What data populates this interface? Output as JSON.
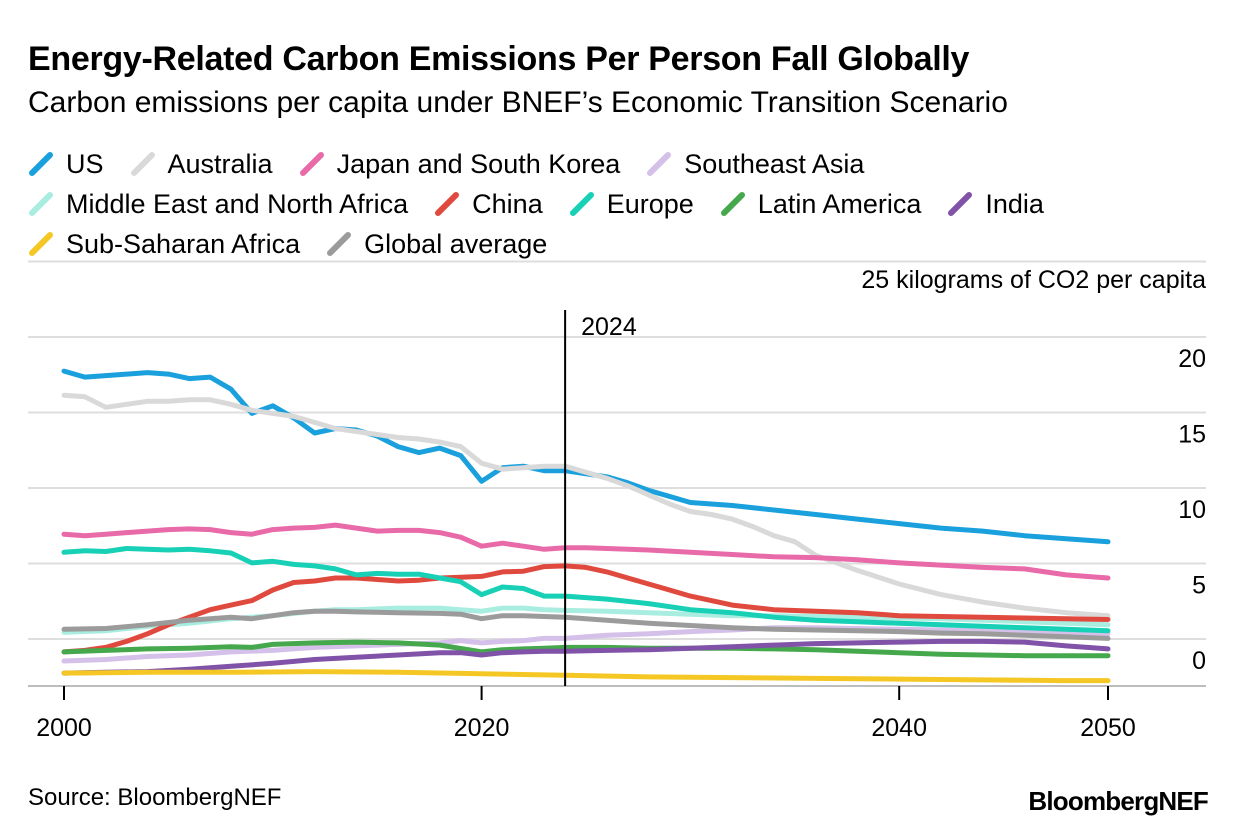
{
  "title": "Energy-Related Carbon Emissions Per Person Fall Globally",
  "subtitle": "Carbon emissions per capita under BNEF’s Economic Transition Scenario",
  "source": "Source: BloombergNEF",
  "brand": "BloombergNEF",
  "chart_data": {
    "type": "line",
    "unit_label": "25 kilograms of CO2 per capita",
    "ylim": [
      -1,
      25
    ],
    "xlim": [
      1999,
      2052
    ],
    "y_ticks": [
      0,
      5,
      10,
      15,
      20
    ],
    "x_ticks": [
      2000,
      2020,
      2040,
      2050
    ],
    "grid": true,
    "legend_position": "top",
    "annotation": {
      "x": 2024,
      "label": "2024"
    },
    "series": [
      {
        "name": "US",
        "color": "#1aa0dc",
        "x": [
          2000,
          2001,
          2002,
          2003,
          2004,
          2005,
          2006,
          2007,
          2008,
          2009,
          2010,
          2011,
          2012,
          2013,
          2014,
          2015,
          2016,
          2017,
          2018,
          2019,
          2020,
          2021,
          2022,
          2023,
          2024,
          2025,
          2026,
          2027,
          2028,
          2029,
          2030,
          2032,
          2034,
          2036,
          2038,
          2040,
          2042,
          2044,
          2046,
          2048,
          2050
        ],
        "y": [
          19.2,
          18.8,
          18.9,
          19.0,
          19.1,
          19.0,
          18.7,
          18.8,
          18.0,
          16.4,
          16.9,
          16.1,
          15.1,
          15.4,
          15.3,
          14.9,
          14.2,
          13.8,
          14.1,
          13.6,
          11.9,
          12.8,
          12.9,
          12.6,
          12.6,
          12.4,
          12.2,
          11.8,
          11.3,
          10.9,
          10.5,
          10.3,
          10.0,
          9.7,
          9.4,
          9.1,
          8.8,
          8.6,
          8.3,
          8.1,
          7.9
        ]
      },
      {
        "name": "Australia",
        "color": "#d9d9d9",
        "x": [
          2000,
          2001,
          2002,
          2003,
          2004,
          2005,
          2006,
          2007,
          2008,
          2009,
          2010,
          2011,
          2012,
          2013,
          2014,
          2015,
          2016,
          2017,
          2018,
          2019,
          2020,
          2021,
          2022,
          2023,
          2024,
          2025,
          2026,
          2027,
          2028,
          2029,
          2030,
          2031,
          2032,
          2033,
          2034,
          2035,
          2036,
          2038,
          2040,
          2042,
          2044,
          2046,
          2048,
          2050
        ],
        "y": [
          17.6,
          17.5,
          16.8,
          17.0,
          17.2,
          17.2,
          17.3,
          17.3,
          17.0,
          16.6,
          16.4,
          16.2,
          15.8,
          15.4,
          15.2,
          15.0,
          14.8,
          14.7,
          14.5,
          14.2,
          13.1,
          12.7,
          12.8,
          12.9,
          12.9,
          12.5,
          12.1,
          11.6,
          11.0,
          10.4,
          9.9,
          9.7,
          9.4,
          8.9,
          8.3,
          7.9,
          7.0,
          6.0,
          5.1,
          4.4,
          3.9,
          3.5,
          3.2,
          3.0
        ]
      },
      {
        "name": "Japan and South Korea",
        "color": "#e86aa8",
        "x": [
          2000,
          2001,
          2002,
          2003,
          2004,
          2005,
          2006,
          2007,
          2008,
          2009,
          2010,
          2011,
          2012,
          2013,
          2014,
          2015,
          2016,
          2017,
          2018,
          2019,
          2020,
          2021,
          2022,
          2023,
          2024,
          2025,
          2026,
          2028,
          2030,
          2032,
          2034,
          2036,
          2038,
          2040,
          2042,
          2044,
          2046,
          2048,
          2050
        ],
        "y": [
          8.4,
          8.3,
          8.4,
          8.5,
          8.6,
          8.7,
          8.75,
          8.7,
          8.5,
          8.4,
          8.7,
          8.8,
          8.85,
          9.0,
          8.8,
          8.6,
          8.65,
          8.65,
          8.5,
          8.2,
          7.6,
          7.8,
          7.6,
          7.4,
          7.5,
          7.5,
          7.45,
          7.35,
          7.2,
          7.05,
          6.9,
          6.85,
          6.7,
          6.5,
          6.35,
          6.2,
          6.1,
          5.7,
          5.5
        ]
      },
      {
        "name": "Southeast Asia",
        "color": "#d4c0e8",
        "x": [
          2000,
          2002,
          2004,
          2006,
          2008,
          2010,
          2012,
          2014,
          2016,
          2018,
          2019,
          2020,
          2021,
          2022,
          2023,
          2024,
          2026,
          2028,
          2030,
          2032,
          2034,
          2036,
          2038,
          2040,
          2042,
          2044,
          2046,
          2048,
          2050
        ],
        "y": [
          0.0,
          0.1,
          0.3,
          0.4,
          0.6,
          0.7,
          0.9,
          1.0,
          1.1,
          1.2,
          1.35,
          1.2,
          1.3,
          1.35,
          1.5,
          1.5,
          1.7,
          1.8,
          1.95,
          2.05,
          2.2,
          2.2,
          2.15,
          2.1,
          2.05,
          2.0,
          1.95,
          1.9,
          1.8
        ]
      },
      {
        "name": "Middle East and North Africa",
        "color": "#a8ede0",
        "x": [
          2000,
          2002,
          2004,
          2006,
          2008,
          2009,
          2010,
          2012,
          2013,
          2014,
          2016,
          2018,
          2019,
          2020,
          2021,
          2022,
          2023,
          2024,
          2026,
          2028,
          2030,
          2032,
          2034,
          2036,
          2038,
          2040,
          2042,
          2044,
          2046,
          2048,
          2050
        ],
        "y": [
          1.9,
          2.0,
          2.3,
          2.5,
          2.8,
          2.9,
          3.0,
          3.3,
          3.4,
          3.4,
          3.5,
          3.5,
          3.4,
          3.3,
          3.5,
          3.5,
          3.4,
          3.35,
          3.3,
          3.2,
          3.1,
          3.0,
          3.0,
          2.95,
          2.9,
          2.85,
          2.8,
          2.7,
          2.6,
          2.5,
          2.4
        ]
      },
      {
        "name": "China",
        "color": "#e0493e",
        "x": [
          2000,
          2001,
          2002,
          2003,
          2004,
          2005,
          2006,
          2007,
          2008,
          2009,
          2010,
          2011,
          2012,
          2013,
          2014,
          2015,
          2016,
          2017,
          2018,
          2019,
          2020,
          2021,
          2022,
          2023,
          2024,
          2025,
          2026,
          2027,
          2028,
          2029,
          2030,
          2032,
          2034,
          2036,
          2038,
          2040,
          2042,
          2044,
          2046,
          2048,
          2050
        ],
        "y": [
          0.6,
          0.7,
          0.9,
          1.3,
          1.8,
          2.4,
          2.9,
          3.4,
          3.7,
          4.0,
          4.7,
          5.2,
          5.3,
          5.5,
          5.5,
          5.4,
          5.3,
          5.35,
          5.5,
          5.55,
          5.6,
          5.9,
          5.95,
          6.25,
          6.3,
          6.2,
          5.9,
          5.5,
          5.1,
          4.7,
          4.3,
          3.7,
          3.4,
          3.3,
          3.2,
          3.0,
          2.95,
          2.9,
          2.85,
          2.8,
          2.75
        ]
      },
      {
        "name": "Europe",
        "color": "#17d0b5",
        "x": [
          2000,
          2001,
          2002,
          2003,
          2004,
          2005,
          2006,
          2007,
          2008,
          2009,
          2010,
          2011,
          2012,
          2013,
          2014,
          2015,
          2016,
          2017,
          2018,
          2019,
          2020,
          2021,
          2022,
          2023,
          2024,
          2026,
          2028,
          2030,
          2032,
          2034,
          2036,
          2038,
          2040,
          2042,
          2044,
          2046,
          2048,
          2050
        ],
        "y": [
          7.2,
          7.3,
          7.25,
          7.45,
          7.4,
          7.35,
          7.4,
          7.3,
          7.15,
          6.5,
          6.6,
          6.4,
          6.3,
          6.1,
          5.7,
          5.8,
          5.75,
          5.75,
          5.5,
          5.25,
          4.4,
          4.9,
          4.8,
          4.3,
          4.3,
          4.1,
          3.8,
          3.4,
          3.2,
          2.9,
          2.7,
          2.6,
          2.5,
          2.4,
          2.3,
          2.2,
          2.1,
          2.0
        ]
      },
      {
        "name": "Latin America",
        "color": "#46a84c",
        "x": [
          2000,
          2002,
          2004,
          2006,
          2008,
          2009,
          2010,
          2012,
          2014,
          2016,
          2018,
          2020,
          2021,
          2022,
          2023,
          2024,
          2026,
          2028,
          2030,
          2032,
          2034,
          2036,
          2038,
          2040,
          2042,
          2044,
          2046,
          2048,
          2050
        ],
        "y": [
          0.6,
          0.7,
          0.8,
          0.85,
          0.95,
          0.9,
          1.1,
          1.2,
          1.25,
          1.2,
          1.05,
          0.6,
          0.75,
          0.8,
          0.85,
          0.9,
          0.9,
          0.85,
          0.85,
          0.85,
          0.8,
          0.75,
          0.65,
          0.55,
          0.45,
          0.4,
          0.35,
          0.35,
          0.35
        ]
      },
      {
        "name": "India",
        "color": "#8052a8",
        "x": [
          2000,
          2002,
          2004,
          2006,
          2008,
          2010,
          2012,
          2014,
          2016,
          2018,
          2019,
          2020,
          2021,
          2022,
          2023,
          2024,
          2026,
          2028,
          2030,
          2032,
          2034,
          2036,
          2038,
          2040,
          2042,
          2044,
          2046,
          2048,
          2050
        ],
        "y": [
          -0.8,
          -0.75,
          -0.7,
          -0.55,
          -0.35,
          -0.15,
          0.1,
          0.25,
          0.4,
          0.55,
          0.55,
          0.4,
          0.55,
          0.6,
          0.65,
          0.65,
          0.7,
          0.75,
          0.85,
          0.95,
          1.05,
          1.15,
          1.2,
          1.25,
          1.3,
          1.3,
          1.25,
          1.0,
          0.8
        ]
      },
      {
        "name": "Sub-Saharan Africa",
        "color": "#f5c725",
        "x": [
          2000,
          2004,
          2008,
          2012,
          2016,
          2020,
          2024,
          2028,
          2032,
          2036,
          2040,
          2044,
          2048,
          2050
        ],
        "y": [
          -0.8,
          -0.75,
          -0.75,
          -0.7,
          -0.75,
          -0.85,
          -0.95,
          -1.05,
          -1.1,
          -1.15,
          -1.2,
          -1.25,
          -1.3,
          -1.3
        ]
      },
      {
        "name": "Global average",
        "color": "#9b9b9b",
        "x": [
          2000,
          2002,
          2004,
          2006,
          2008,
          2009,
          2010,
          2011,
          2012,
          2013,
          2014,
          2016,
          2018,
          2019,
          2020,
          2021,
          2022,
          2023,
          2024,
          2026,
          2028,
          2030,
          2032,
          2034,
          2036,
          2038,
          2040,
          2042,
          2044,
          2046,
          2048,
          2050
        ],
        "y": [
          2.1,
          2.15,
          2.4,
          2.7,
          2.9,
          2.8,
          3.0,
          3.2,
          3.3,
          3.3,
          3.25,
          3.2,
          3.15,
          3.1,
          2.8,
          3.0,
          3.0,
          2.95,
          2.9,
          2.7,
          2.5,
          2.35,
          2.2,
          2.1,
          2.05,
          2.0,
          1.95,
          1.85,
          1.8,
          1.7,
          1.6,
          1.5
        ]
      }
    ]
  }
}
